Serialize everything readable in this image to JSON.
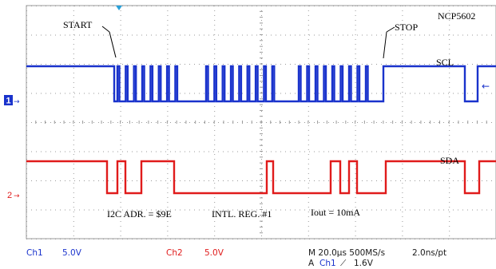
{
  "chart_data": {
    "type": "line",
    "title": "NCP5602",
    "channels": [
      {
        "id": "ch1",
        "signal": "SCL",
        "color": "#1a33cc",
        "marker": "1"
      },
      {
        "id": "ch2",
        "signal": "SDA",
        "color": "#e01b1b",
        "marker": "2"
      }
    ],
    "annotations": {
      "start": "START",
      "stop": "STOP",
      "scl": "SCL",
      "sda": "SDA",
      "address": "I2C ADR. = $9E",
      "register": "INTL. REG. #1",
      "current": "Iout = 10mA"
    },
    "status_bar": {
      "ch1_label": "Ch1",
      "ch1_scale": "5.0V",
      "ch2_label": "Ch2",
      "ch2_scale": "5.0V",
      "timebase": "M 20.0µs 500MS/s",
      "sample": "2.0ns/pt",
      "trigger_prefix": "A",
      "trigger_channel": "Ch1",
      "trigger_slope": "⟋",
      "trigger_level": "1.6V"
    },
    "grid": {
      "on": true,
      "divisions_x": 10,
      "divisions_y": 8
    }
  }
}
